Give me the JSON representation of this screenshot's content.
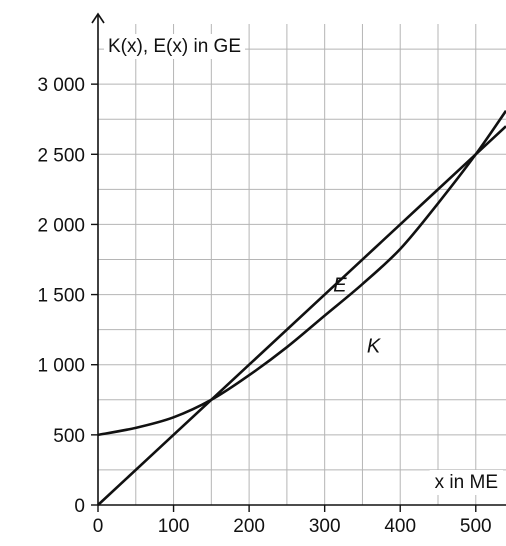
{
  "chart_data": {
    "type": "line",
    "title": "",
    "ylabel": "K(x), E(x) in GE",
    "xlabel": "x in ME",
    "xlim": [
      0,
      540
    ],
    "ylim": [
      0,
      3500
    ],
    "x_ticks": [
      0,
      100,
      200,
      300,
      400,
      500
    ],
    "x_tick_labels": [
      "0",
      "100",
      "200",
      "300",
      "400",
      "500"
    ],
    "y_ticks": [
      0,
      500,
      1000,
      1500,
      2000,
      2500,
      3000
    ],
    "y_tick_labels": [
      "0",
      "500",
      "1 000",
      "1 500",
      "2 000",
      "2 500",
      "3 000"
    ],
    "grid": true,
    "grid_minor_x": 50,
    "grid_minor_y": 250,
    "series": [
      {
        "name": "E",
        "x": [
          0,
          100,
          200,
          300,
          400,
          500,
          540
        ],
        "y": [
          0,
          500,
          1000,
          1500,
          2000,
          2500,
          2700
        ]
      },
      {
        "name": "K",
        "x": [
          0,
          50,
          100,
          150,
          200,
          250,
          300,
          350,
          400,
          450,
          500,
          540
        ],
        "y": [
          500,
          550,
          625,
          750,
          925,
          1125,
          1350,
          1575,
          1825,
          2150,
          2500,
          2810
        ]
      }
    ],
    "colors": {
      "curve": "#111111",
      "grid": "#b5b5b5",
      "axis": "#111111"
    }
  }
}
